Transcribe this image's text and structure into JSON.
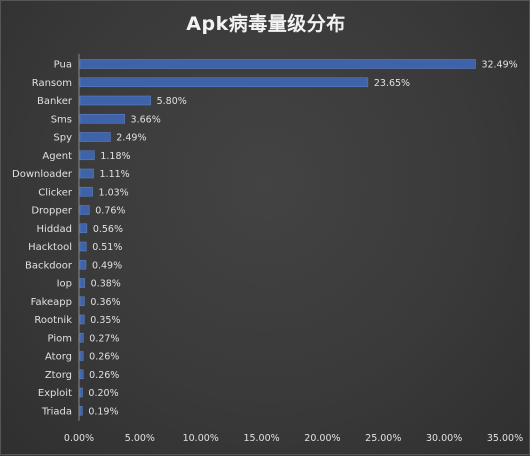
{
  "chart_data": {
    "type": "bar",
    "orientation": "horizontal",
    "title": "Apk病毒量级分布",
    "categories": [
      "Pua",
      "Ransom",
      "Banker",
      "Sms",
      "Spy",
      "Agent",
      "Downloader",
      "Clicker",
      "Dropper",
      "Hiddad",
      "Hacktool",
      "Backdoor",
      "Iop",
      "Fakeapp",
      "Rootnik",
      "Piom",
      "Atorg",
      "Ztorg",
      "Exploit",
      "Triada"
    ],
    "values": [
      32.49,
      23.65,
      5.8,
      3.66,
      2.49,
      1.18,
      1.11,
      1.03,
      0.76,
      0.56,
      0.51,
      0.49,
      0.38,
      0.36,
      0.35,
      0.27,
      0.26,
      0.26,
      0.2,
      0.19
    ],
    "value_labels": [
      "32.49%",
      "23.65%",
      "5.80%",
      "3.66%",
      "2.49%",
      "1.18%",
      "1.11%",
      "1.03%",
      "0.76%",
      "0.56%",
      "0.51%",
      "0.49%",
      "0.38%",
      "0.36%",
      "0.35%",
      "0.27%",
      "0.26%",
      "0.26%",
      "0.20%",
      "0.19%"
    ],
    "xlim": [
      0,
      35
    ],
    "xticks": [
      0,
      5,
      10,
      15,
      20,
      25,
      30,
      35
    ],
    "xtick_labels": [
      "0.00%",
      "5.00%",
      "10.00%",
      "15.00%",
      "20.00%",
      "25.00%",
      "30.00%",
      "35.00%"
    ],
    "xlabel": "",
    "ylabel": "",
    "grid": false,
    "legend": "none",
    "colors": {
      "bar": "#3f63a8",
      "bar_edge": "#5b7fc4",
      "text": "#e0e0e0",
      "title": "#f2f2f2",
      "background": "#3a3a3a"
    }
  }
}
